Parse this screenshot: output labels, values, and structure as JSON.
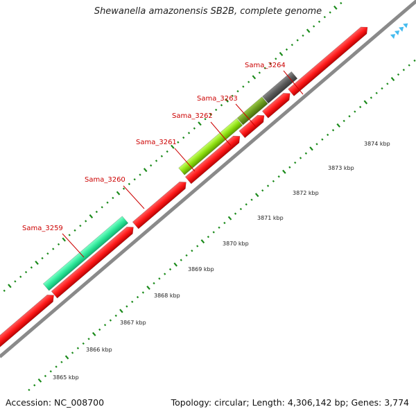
{
  "title": "Shewanella amazonensis SB2B, complete genome",
  "footer": {
    "accession": "Accession: NC_008700",
    "topology": "Topology: circular; Length: 4,306,142 bp; Genes: 3,774"
  },
  "kbp_labels": [
    "3865 kbp",
    "3866 kbp",
    "3867 kbp",
    "3868 kbp",
    "3869 kbp",
    "3870 kbp",
    "3871 kbp",
    "3872 kbp",
    "3873 kbp",
    "3874 kbp"
  ],
  "gene_labels": [
    "Sama_3259",
    "Sama_3260",
    "Sama_3261",
    "Sama_3262",
    "Sama_3263",
    "Sama_3264"
  ],
  "colors": {
    "label_red": "#cc0000",
    "gene_red": "#ff1a1a",
    "gene_teal": "#2ee89a",
    "gene_lime": "#8ee010",
    "gene_olive": "#6b9a1e",
    "gene_gray": "#5a5a5a",
    "gene_green": "#33cc33",
    "tick_green": "#1a8a1a",
    "backbone": "#8a8a8a",
    "arrow_blue": "#44bbee"
  }
}
